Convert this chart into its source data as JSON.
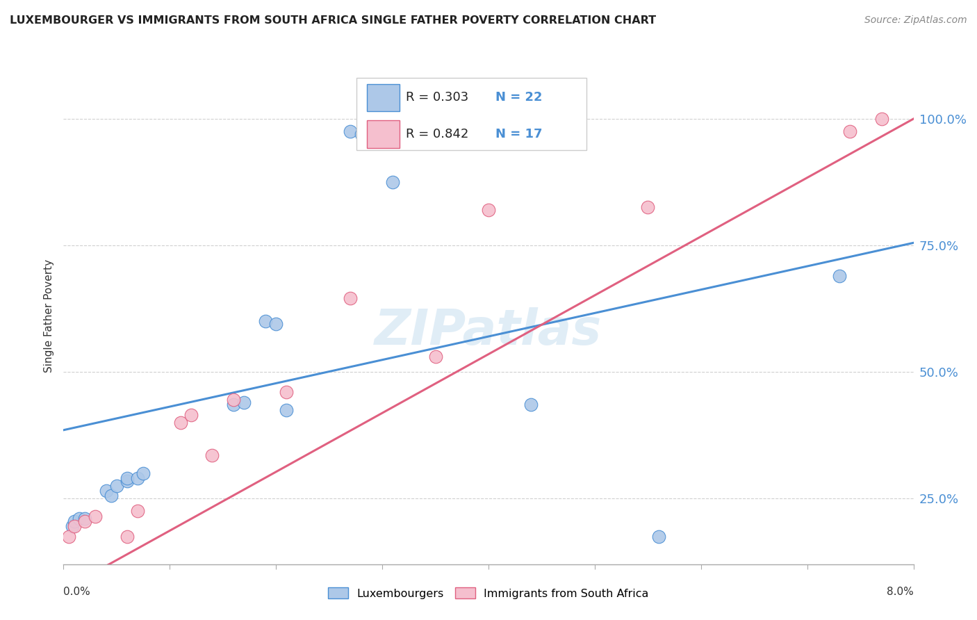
{
  "title": "LUXEMBOURGER VS IMMIGRANTS FROM SOUTH AFRICA SINGLE FATHER POVERTY CORRELATION CHART",
  "source": "Source: ZipAtlas.com",
  "ylabel": "Single Father Poverty",
  "yticks": [
    0.25,
    0.5,
    0.75,
    1.0
  ],
  "ytick_labels": [
    "25.0%",
    "50.0%",
    "75.0%",
    "100.0%"
  ],
  "legend_entries": [
    "Luxembourgers",
    "Immigrants from South Africa"
  ],
  "blue_color": "#adc8e8",
  "pink_color": "#f5bfce",
  "blue_line_color": "#4a8fd4",
  "pink_line_color": "#e06080",
  "watermark": "ZIPatlas",
  "blue_points": [
    [
      0.0008,
      0.195
    ],
    [
      0.001,
      0.205
    ],
    [
      0.0015,
      0.21
    ],
    [
      0.002,
      0.21
    ],
    [
      0.004,
      0.265
    ],
    [
      0.0045,
      0.255
    ],
    [
      0.005,
      0.275
    ],
    [
      0.006,
      0.285
    ],
    [
      0.006,
      0.29
    ],
    [
      0.007,
      0.29
    ],
    [
      0.0075,
      0.3
    ],
    [
      0.016,
      0.435
    ],
    [
      0.017,
      0.44
    ],
    [
      0.019,
      0.6
    ],
    [
      0.02,
      0.595
    ],
    [
      0.021,
      0.425
    ],
    [
      0.027,
      0.975
    ],
    [
      0.028,
      0.97
    ],
    [
      0.031,
      0.875
    ],
    [
      0.044,
      0.435
    ],
    [
      0.056,
      0.175
    ],
    [
      0.073,
      0.69
    ]
  ],
  "pink_points": [
    [
      0.0005,
      0.175
    ],
    [
      0.001,
      0.195
    ],
    [
      0.002,
      0.205
    ],
    [
      0.003,
      0.215
    ],
    [
      0.006,
      0.175
    ],
    [
      0.007,
      0.225
    ],
    [
      0.011,
      0.4
    ],
    [
      0.012,
      0.415
    ],
    [
      0.014,
      0.335
    ],
    [
      0.016,
      0.445
    ],
    [
      0.021,
      0.46
    ],
    [
      0.027,
      0.645
    ],
    [
      0.035,
      0.53
    ],
    [
      0.04,
      0.82
    ],
    [
      0.055,
      0.825
    ],
    [
      0.074,
      0.975
    ],
    [
      0.077,
      1.0
    ]
  ],
  "xlim": [
    0.0,
    0.08
  ],
  "ylim": [
    0.12,
    1.1
  ],
  "blue_trend": [
    0.385,
    0.755
  ],
  "pink_trend": [
    0.07,
    1.0
  ]
}
